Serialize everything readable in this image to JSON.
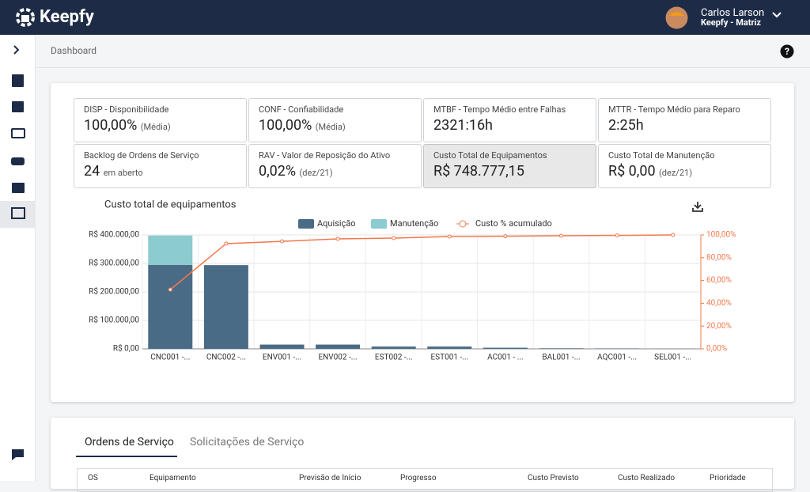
{
  "header": {
    "brand": "Keepfy",
    "user_name": "Carlos Larson",
    "user_org": "Keepfy - Matriz"
  },
  "breadcrumb": "Dashboard",
  "kpis": [
    {
      "label": "DISP - Disponibilidade",
      "value": "100,00%",
      "note": "(Média)"
    },
    {
      "label": "CONF - Confiabilidade",
      "value": "100,00%",
      "note": "(Média)"
    },
    {
      "label": "MTBF - Tempo Médio entre Falhas",
      "value": "2321:16h"
    },
    {
      "label": "MTTR - Tempo Médio para Reparo",
      "value": "2:25h"
    },
    {
      "label": "Backlog de Ordens de Serviço",
      "value": "24",
      "note": "em aberto"
    },
    {
      "label": "RAV - Valor de Reposição do Ativo",
      "value": "0,02%",
      "note": "(dez/21)"
    },
    {
      "label": "Custo Total de Equipamentos",
      "value": "R$ 748.777,15"
    },
    {
      "label": "Custo Total de Manutenção",
      "value": "R$ 0,00",
      "note": "(dez/21)"
    }
  ],
  "chart_data": {
    "type": "bar",
    "title": "Custo total de equipamentos",
    "stacked": true,
    "categories": [
      "CNC001 -...",
      "CNC002 -...",
      "ENV001 -...",
      "ENV002 -...",
      "EST002 -...",
      "EST001 -...",
      "AC001 - ...",
      "BAL001 -...",
      "AQC001 -...",
      "SEL001 -..."
    ],
    "series": [
      {
        "name": "Aquisição",
        "color": "#4a6b85",
        "values": [
          295000,
          294000,
          15000,
          15000,
          8000,
          8000,
          4000,
          2000,
          1500,
          500
        ]
      },
      {
        "name": "Manutenção",
        "color": "#8ccbd0",
        "values": [
          103000,
          0,
          0,
          0,
          0,
          0,
          0,
          0,
          0,
          0
        ]
      },
      {
        "name": "Custo % acumulado",
        "type": "line",
        "axis": "y2",
        "color": "#f2784b",
        "values": [
          52,
          92.4,
          94.4,
          96.5,
          97.2,
          98.6,
          98.9,
          99.3,
          99.6,
          100
        ]
      }
    ],
    "ylim": [
      0,
      400000
    ],
    "yticks": [
      {
        "value": 0,
        "label": "R$ 0,00"
      },
      {
        "value": 100000,
        "label": "R$ 100.000,00"
      },
      {
        "value": 200000,
        "label": "R$ 200.000,00"
      },
      {
        "value": 300000,
        "label": "R$ 300.000,00"
      },
      {
        "value": 400000,
        "label": "R$ 400.000,00"
      }
    ],
    "y2lim": [
      0,
      100
    ],
    "y2ticks": [
      {
        "value": 0,
        "label": "0,00%"
      },
      {
        "value": 20,
        "label": "20,00%"
      },
      {
        "value": 40,
        "label": "40,00%"
      },
      {
        "value": 60,
        "label": "60,00%"
      },
      {
        "value": 80,
        "label": "80,00%"
      },
      {
        "value": 100,
        "label": "100,00%"
      }
    ],
    "grid": true,
    "legend": "top"
  },
  "tabs": [
    "Ordens de Serviço",
    "Solicitações de Serviço"
  ],
  "table": {
    "columns": [
      "OS",
      "Equipamento",
      "Previsão de Início",
      "Progresso",
      "Custo Previsto",
      "Custo Realizado",
      "Prioridade"
    ]
  }
}
